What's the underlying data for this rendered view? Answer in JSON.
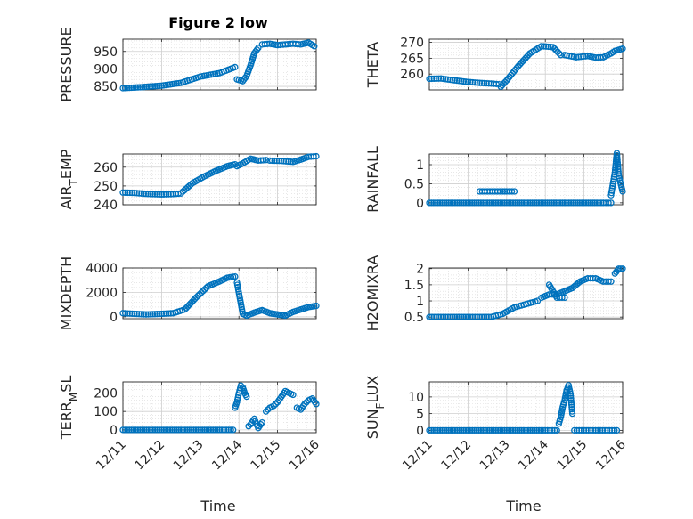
{
  "figure": {
    "title": "Figure 2 low",
    "xlabel": "Time",
    "x_tick_labels": [
      "12/11",
      "12/12",
      "12/13",
      "12/14",
      "12/15",
      "12/16"
    ],
    "marker_color": "#0072BD",
    "axis_color": "#262626",
    "grid_color": "#d9d9d9"
  },
  "chart_data": [
    {
      "type": "scatter",
      "id": "pressure",
      "ylabel_parts": [
        "PRESSURE"
      ],
      "ylim": [
        840,
        985
      ],
      "yticks": [
        850,
        900,
        950
      ],
      "xlim": [
        0,
        5
      ],
      "grid": true,
      "segments": [
        {
          "x": [
            0.0,
            0.5,
            1.0,
            1.5,
            2.0,
            2.5,
            2.9
          ],
          "y": [
            845,
            848,
            852,
            860,
            878,
            888,
            905
          ]
        },
        {
          "x": [
            2.95,
            3.1,
            3.2,
            3.3,
            3.4,
            3.5
          ],
          "y": [
            870,
            865,
            880,
            910,
            945,
            960
          ]
        },
        {
          "x": [
            3.6,
            3.8,
            4.0,
            4.2,
            4.4,
            4.6,
            4.8,
            4.95
          ],
          "y": [
            970,
            972,
            968,
            970,
            972,
            970,
            975,
            965
          ]
        }
      ]
    },
    {
      "type": "scatter",
      "id": "theta",
      "ylabel_parts": [
        "THETA"
      ],
      "ylim": [
        255,
        271
      ],
      "yticks": [
        260,
        265,
        270
      ],
      "xlim": [
        0,
        5
      ],
      "grid": true,
      "segments": [
        {
          "x": [
            0.0,
            0.3,
            0.6,
            1.0,
            1.3,
            1.6,
            1.8
          ],
          "y": [
            258.5,
            258.6,
            258.1,
            257.5,
            257.2,
            257.0,
            256.8
          ]
        },
        {
          "x": [
            1.85,
            2.0,
            2.3,
            2.6,
            2.9,
            3.2,
            3.4
          ],
          "y": [
            256.0,
            258.0,
            262.5,
            266.5,
            268.8,
            268.5,
            266.0
          ]
        },
        {
          "x": [
            3.5,
            3.8,
            4.1,
            4.3,
            4.5,
            4.7,
            4.8,
            5.0
          ],
          "y": [
            266.0,
            265.3,
            265.7,
            265.2,
            265.3,
            266.5,
            267.3,
            268.0
          ]
        }
      ]
    },
    {
      "type": "scatter",
      "id": "air_temp",
      "ylabel_parts": [
        "AIR",
        "T",
        "EMP"
      ],
      "ylim": [
        240,
        267
      ],
      "yticks": [
        240,
        250,
        260
      ],
      "xlim": [
        0,
        5
      ],
      "grid": true,
      "segments": [
        {
          "x": [
            0.0,
            0.3,
            0.6,
            1.0,
            1.3,
            1.5
          ],
          "y": [
            246.5,
            246.3,
            245.8,
            245.5,
            245.7,
            246.0
          ]
        },
        {
          "x": [
            1.55,
            1.8,
            2.1,
            2.4,
            2.7,
            2.9
          ],
          "y": [
            247.0,
            251.5,
            255.0,
            258.0,
            260.5,
            261.5
          ]
        },
        {
          "x": [
            2.95,
            3.1,
            3.3,
            3.5,
            3.7
          ],
          "y": [
            260.5,
            262.0,
            264.5,
            263.5,
            263.8
          ]
        },
        {
          "x": [
            3.8,
            4.1,
            4.4,
            4.6,
            4.8,
            5.0
          ],
          "y": [
            263.5,
            263.3,
            262.8,
            264.0,
            265.5,
            265.8
          ]
        }
      ]
    },
    {
      "type": "scatter",
      "id": "rainfall",
      "ylabel_parts": [
        "RAINFALL"
      ],
      "ylim": [
        -0.05,
        1.28
      ],
      "yticks": [
        0,
        0.5,
        1
      ],
      "ytick_labels": [
        "0",
        "0.5",
        "1"
      ],
      "xlim": [
        0,
        5
      ],
      "grid": true,
      "segments": [
        {
          "x": [
            0.0,
            0.5,
            1.0,
            1.5,
            2.0,
            2.5,
            3.0,
            3.5,
            4.0,
            4.5,
            4.7
          ],
          "y": [
            0,
            0,
            0,
            0,
            0,
            0,
            0,
            0,
            0,
            0,
            0
          ]
        },
        {
          "x": [
            1.3,
            1.5,
            1.7,
            1.9,
            2.0,
            2.2
          ],
          "y": [
            0.3,
            0.3,
            0.3,
            0.3,
            0.3,
            0.3
          ]
        },
        {
          "x": [
            4.7,
            4.8,
            4.85,
            4.9,
            5.0
          ],
          "y": [
            0.2,
            0.8,
            1.3,
            0.7,
            0.3
          ]
        }
      ]
    },
    {
      "type": "scatter",
      "id": "mixdepth",
      "ylabel_parts": [
        "MIXDEPTH"
      ],
      "ylim": [
        -150,
        4000
      ],
      "yticks": [
        0,
        2000,
        4000
      ],
      "xlim": [
        0,
        5
      ],
      "grid": true,
      "segments": [
        {
          "x": [
            0.0,
            0.3,
            0.6,
            1.0,
            1.3,
            1.6,
            1.9,
            2.2,
            2.5,
            2.7,
            2.9
          ],
          "y": [
            300,
            250,
            200,
            250,
            300,
            600,
            1600,
            2500,
            2900,
            3200,
            3300
          ]
        },
        {
          "x": [
            2.95,
            3.1,
            3.2,
            3.4,
            3.6,
            3.8,
            4.0,
            4.2,
            4.4,
            4.6,
            4.8,
            5.0
          ],
          "y": [
            2800,
            250,
            100,
            350,
            550,
            300,
            200,
            100,
            400,
            600,
            800,
            900
          ]
        }
      ]
    },
    {
      "type": "scatter",
      "id": "h2omixra",
      "ylabel_parts": [
        "H2OMIXRA"
      ],
      "ylim": [
        0.45,
        2.02
      ],
      "yticks": [
        0.5,
        1,
        1.5,
        2
      ],
      "ytick_labels": [
        "0.5",
        "1",
        "1.5",
        "2"
      ],
      "xlim": [
        0,
        5
      ],
      "grid": true,
      "segments": [
        {
          "x": [
            0.0,
            0.3,
            0.6,
            1.0,
            1.3,
            1.6,
            1.9,
            2.2,
            2.5,
            2.8
          ],
          "y": [
            0.5,
            0.5,
            0.5,
            0.5,
            0.5,
            0.5,
            0.6,
            0.8,
            0.9,
            1.0
          ]
        },
        {
          "x": [
            2.9,
            3.1,
            3.3,
            3.5,
            3.7,
            3.9,
            4.1,
            4.3,
            4.5,
            4.7
          ],
          "y": [
            1.1,
            1.2,
            1.2,
            1.3,
            1.4,
            1.6,
            1.7,
            1.7,
            1.6,
            1.6
          ]
        },
        {
          "x": [
            3.1,
            3.3,
            3.5
          ],
          "y": [
            1.5,
            1.1,
            1.1
          ]
        },
        {
          "x": [
            4.8,
            4.9,
            5.0
          ],
          "y": [
            1.85,
            2.0,
            2.0
          ]
        }
      ]
    },
    {
      "type": "scatter",
      "id": "terr_msl",
      "ylabel_parts": [
        "TERR",
        "M",
        "SL"
      ],
      "ylim": [
        -15,
        260
      ],
      "yticks": [
        0,
        100,
        200
      ],
      "xlim": [
        0,
        5
      ],
      "grid": true,
      "segments": [
        {
          "x": [
            0.0,
            0.5,
            1.0,
            1.5,
            2.0,
            2.5,
            2.85
          ],
          "y": [
            0,
            0,
            0,
            0,
            0,
            0,
            0
          ]
        },
        {
          "x": [
            2.9,
            2.95,
            3.0,
            3.05,
            3.1,
            3.15,
            3.2
          ],
          "y": [
            120,
            150,
            200,
            240,
            230,
            200,
            180
          ]
        },
        {
          "x": [
            3.25,
            3.3,
            3.4,
            3.5,
            3.6
          ],
          "y": [
            20,
            30,
            60,
            10,
            40
          ]
        },
        {
          "x": [
            3.7,
            3.8,
            3.9,
            4.0,
            4.1,
            4.2,
            4.3,
            4.4
          ],
          "y": [
            100,
            120,
            130,
            150,
            180,
            210,
            200,
            190
          ]
        },
        {
          "x": [
            4.5,
            4.6,
            4.7,
            4.8,
            4.9,
            5.0
          ],
          "y": [
            120,
            110,
            140,
            160,
            170,
            140
          ]
        }
      ]
    },
    {
      "type": "scatter",
      "id": "sun_flux",
      "ylabel_parts": [
        "SUN",
        "F",
        "LUX"
      ],
      "ylim": [
        -0.7,
        14.5
      ],
      "yticks": [
        0,
        5,
        10
      ],
      "xlim": [
        0,
        5
      ],
      "grid": true,
      "segments": [
        {
          "x": [
            0.0,
            0.5,
            1.0,
            1.5,
            2.0,
            2.5,
            3.0,
            3.3
          ],
          "y": [
            0,
            0,
            0,
            0,
            0,
            0,
            0,
            0
          ]
        },
        {
          "x": [
            3.35,
            3.4,
            3.45,
            3.5,
            3.55,
            3.6,
            3.65,
            3.7
          ],
          "y": [
            2,
            4,
            7,
            9,
            12,
            13.5,
            11,
            5
          ]
        },
        {
          "x": [
            3.75,
            4.0,
            4.3,
            4.6,
            4.85
          ],
          "y": [
            0,
            0,
            0,
            0,
            0
          ]
        }
      ]
    }
  ]
}
